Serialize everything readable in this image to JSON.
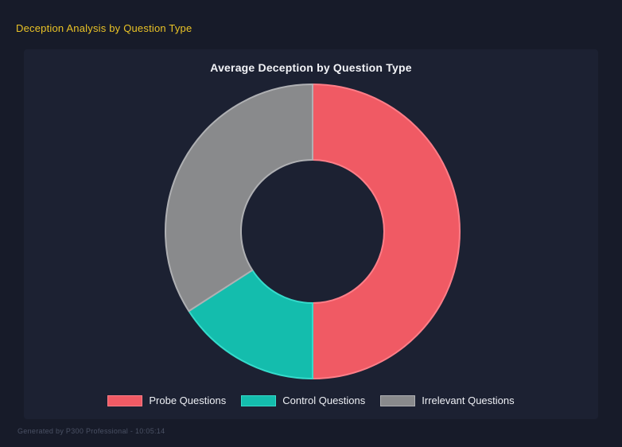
{
  "header": {
    "title": "Deception Analysis by Question Type"
  },
  "footer": {
    "text": "Generated by P300 Professional - 10:05:14"
  },
  "colors": {
    "page_bg": "#171B29",
    "panel_bg": "#1C2132",
    "header_yellow": "#E9C226",
    "title_text": "#F2F3F7",
    "legend_text": "#EDEFF4",
    "footer_text": "#4A5164"
  },
  "chart_data": {
    "type": "pie",
    "subtype": "doughnut",
    "title": "Average Deception by Question Type",
    "categories": [
      "Probe Questions",
      "Control Questions",
      "Irrelevant Questions"
    ],
    "values_percent": [
      50.0,
      15.9,
      34.1
    ],
    "colors": [
      "#F05A64",
      "#14BDAD",
      "#898A8C"
    ],
    "border_colors": [
      "#FF7E88",
      "#35DBCB",
      "#AFB0B3"
    ],
    "start_angle_deg_from_top": 0,
    "direction": "clockwise",
    "cutout_ratio": 0.49,
    "legend_position": "bottom",
    "grid": false
  }
}
